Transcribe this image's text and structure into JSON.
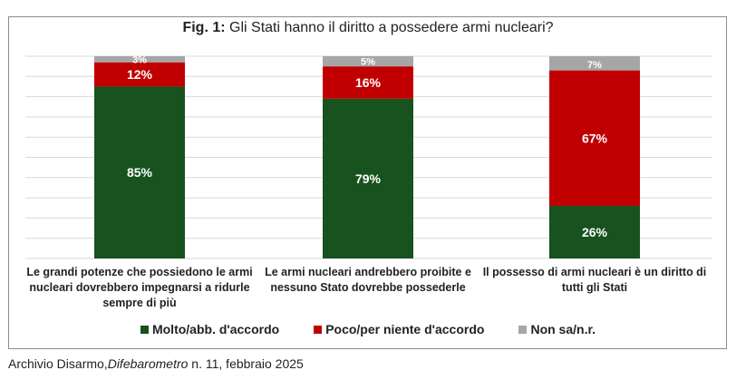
{
  "chart_data": {
    "type": "bar",
    "stacked": true,
    "title_prefix": "Fig. 1:",
    "title": "Gli Stati hanno il diritto a possedere armi nucleari?",
    "categories": [
      "Le grandi potenze che possiedono le armi nucleari dovrebbero impegnarsi a ridurle sempre di più",
      "Le armi nucleari andrebbero proibite e nessuno Stato dovrebbe possederle",
      "Il possesso di armi nucleari è un diritto di tutti gli Stati"
    ],
    "series": [
      {
        "name": "Molto/abb. d'accordo",
        "color": "#17521f",
        "values": [
          85,
          79,
          26
        ]
      },
      {
        "name": "Poco/per niente d'accordo",
        "color": "#c00000",
        "values": [
          12,
          16,
          67
        ]
      },
      {
        "name": "Non sa/n.r.",
        "color": "#a6a6a6",
        "values": [
          3,
          5,
          7
        ]
      }
    ],
    "value_suffix": "%",
    "ylim": [
      0,
      100
    ],
    "grid": true,
    "legend_position": "bottom"
  },
  "source": {
    "prefix": "Archivio Disarmo,",
    "italic": "Difebarometro",
    "suffix": " n. 11, febbraio 2025"
  }
}
